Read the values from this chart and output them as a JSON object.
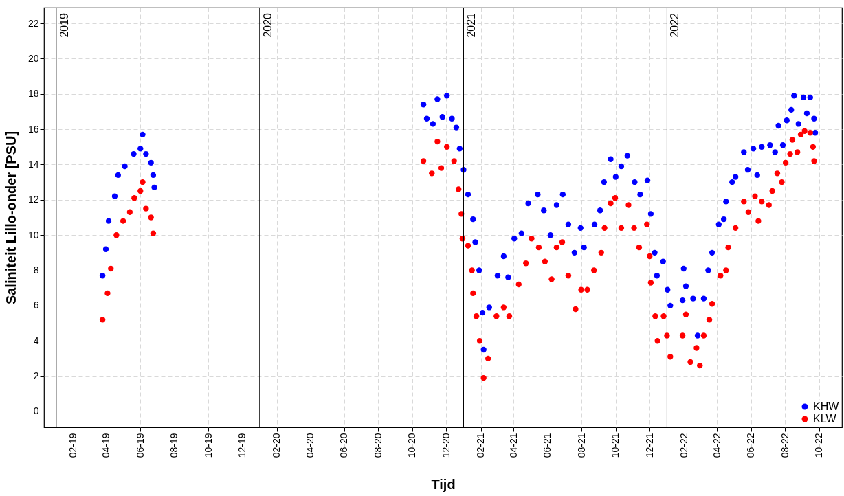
{
  "chart_data": {
    "type": "scatter",
    "xlabel": "Tijd",
    "ylabel": "Saliniteit Lillo-onder [PSU]",
    "xlim": [
      "2018-12-10",
      "2022-11-11"
    ],
    "ylim": [
      -0.9,
      22.9
    ],
    "yticks": [
      0,
      2,
      4,
      6,
      8,
      10,
      12,
      14,
      16,
      18,
      20,
      22
    ],
    "xticks": [
      {
        "value": "2019-02-01",
        "label": "02-19"
      },
      {
        "value": "2019-04-01",
        "label": "04-19"
      },
      {
        "value": "2019-06-01",
        "label": "06-19"
      },
      {
        "value": "2019-08-01",
        "label": "08-19"
      },
      {
        "value": "2019-10-01",
        "label": "10-19"
      },
      {
        "value": "2019-12-01",
        "label": "12-19"
      },
      {
        "value": "2020-02-01",
        "label": "02-20"
      },
      {
        "value": "2020-04-01",
        "label": "04-20"
      },
      {
        "value": "2020-06-01",
        "label": "06-20"
      },
      {
        "value": "2020-08-01",
        "label": "08-20"
      },
      {
        "value": "2020-10-01",
        "label": "10-20"
      },
      {
        "value": "2020-12-01",
        "label": "12-20"
      },
      {
        "value": "2021-02-01",
        "label": "02-21"
      },
      {
        "value": "2021-04-01",
        "label": "04-21"
      },
      {
        "value": "2021-06-01",
        "label": "06-21"
      },
      {
        "value": "2021-08-01",
        "label": "08-21"
      },
      {
        "value": "2021-10-01",
        "label": "10-21"
      },
      {
        "value": "2021-12-01",
        "label": "12-21"
      },
      {
        "value": "2022-02-01",
        "label": "02-22"
      },
      {
        "value": "2022-04-01",
        "label": "04-22"
      },
      {
        "value": "2022-06-01",
        "label": "06-22"
      },
      {
        "value": "2022-08-01",
        "label": "08-22"
      },
      {
        "value": "2022-10-01",
        "label": "10-22"
      }
    ],
    "grid": true,
    "legend": "bottom right",
    "marker": "circle",
    "ref_lines": [
      {
        "axis": "x",
        "value": "2019-01-01",
        "label": "2019",
        "color": "#000000"
      },
      {
        "axis": "x",
        "value": "2020-01-01",
        "label": "2020",
        "color": "#000000"
      },
      {
        "axis": "x",
        "value": "2021-01-01",
        "label": "2021",
        "color": "#000000"
      },
      {
        "axis": "x",
        "value": "2022-01-01",
        "label": "2022",
        "color": "#000000"
      }
    ],
    "series": [
      {
        "name": "KHW",
        "color": "#0000ff",
        "x": [
          "2019-03-25",
          "2019-03-31",
          "2019-04-05",
          "2019-04-16",
          "2019-04-22",
          "2019-05-04",
          "2019-05-20",
          "2019-06-01",
          "2019-06-05",
          "2019-06-11",
          "2019-06-20",
          "2019-06-24",
          "2019-06-26",
          "2020-10-21",
          "2020-10-27",
          "2020-11-07",
          "2020-11-15",
          "2020-11-24",
          "2020-12-02",
          "2020-12-11",
          "2020-12-19",
          "2020-12-25",
          "2021-01-01",
          "2021-01-09",
          "2021-01-18",
          "2021-01-22",
          "2021-01-29",
          "2021-02-04",
          "2021-02-06",
          "2021-02-16",
          "2021-03-03",
          "2021-03-14",
          "2021-03-22",
          "2021-04-02",
          "2021-04-15",
          "2021-04-27",
          "2021-05-14",
          "2021-05-25",
          "2021-06-06",
          "2021-06-17",
          "2021-06-28",
          "2021-07-08",
          "2021-07-19",
          "2021-07-30",
          "2021-08-05",
          "2021-08-24",
          "2021-09-03",
          "2021-09-10",
          "2021-09-22",
          "2021-10-01",
          "2021-10-11",
          "2021-10-22",
          "2021-11-04",
          "2021-11-14",
          "2021-11-27",
          "2021-12-03",
          "2021-12-10",
          "2021-12-14",
          "2021-12-25",
          "2022-01-02",
          "2022-01-07",
          "2022-01-29",
          "2022-01-31",
          "2022-02-04",
          "2022-02-17",
          "2022-02-25",
          "2022-03-08",
          "2022-03-16",
          "2022-03-23",
          "2022-04-04",
          "2022-04-13",
          "2022-04-17",
          "2022-04-28",
          "2022-05-04",
          "2022-05-19",
          "2022-05-26",
          "2022-06-05",
          "2022-06-12",
          "2022-06-20",
          "2022-07-05",
          "2022-07-14",
          "2022-07-20",
          "2022-07-28",
          "2022-08-04",
          "2022-08-12",
          "2022-08-17",
          "2022-08-25",
          "2022-09-03",
          "2022-09-09",
          "2022-09-15",
          "2022-09-22",
          "2022-09-24"
        ],
        "values": [
          7.7,
          9.2,
          10.8,
          12.2,
          13.4,
          13.9,
          14.6,
          14.9,
          15.7,
          14.6,
          14.1,
          13.4,
          12.7,
          17.4,
          16.6,
          16.3,
          17.7,
          16.7,
          17.9,
          16.6,
          16.1,
          14.9,
          13.7,
          12.3,
          10.9,
          9.6,
          8.0,
          5.6,
          3.5,
          5.9,
          7.7,
          8.8,
          7.6,
          9.8,
          10.1,
          11.8,
          12.3,
          11.4,
          10.0,
          11.7,
          12.3,
          10.6,
          9.0,
          10.4,
          9.3,
          10.6,
          11.4,
          13.0,
          14.3,
          13.3,
          13.9,
          14.5,
          13.0,
          12.3,
          13.1,
          11.2,
          9.0,
          7.7,
          8.5,
          6.9,
          6.0,
          6.3,
          8.1,
          7.1,
          6.4,
          4.3,
          6.4,
          8.0,
          9.0,
          10.6,
          10.9,
          11.9,
          13.0,
          13.3,
          14.7,
          13.7,
          14.9,
          13.4,
          15.0,
          15.1,
          14.7,
          16.2,
          15.1,
          16.5,
          17.1,
          17.9,
          16.3,
          17.8,
          16.9,
          17.8,
          16.6,
          15.8
        ]
      },
      {
        "name": "KLW",
        "color": "#ff0000",
        "x": [
          "2019-03-25",
          "2019-04-03",
          "2019-04-09",
          "2019-04-19",
          "2019-05-01",
          "2019-05-13",
          "2019-05-21",
          "2019-06-01",
          "2019-06-05",
          "2019-06-11",
          "2019-06-20",
          "2019-06-24",
          "2020-10-21",
          "2020-11-05",
          "2020-11-15",
          "2020-11-22",
          "2020-12-02",
          "2020-12-15",
          "2020-12-23",
          "2020-12-28",
          "2020-12-30",
          "2021-01-09",
          "2021-01-16",
          "2021-01-18",
          "2021-01-24",
          "2021-01-30",
          "2021-02-06",
          "2021-02-14",
          "2021-03-01",
          "2021-03-14",
          "2021-03-24",
          "2021-04-10",
          "2021-04-23",
          "2021-05-03",
          "2021-05-16",
          "2021-05-27",
          "2021-06-08",
          "2021-06-17",
          "2021-06-27",
          "2021-07-08",
          "2021-07-21",
          "2021-07-31",
          "2021-08-11",
          "2021-08-23",
          "2021-09-05",
          "2021-09-11",
          "2021-09-22",
          "2021-09-30",
          "2021-10-11",
          "2021-10-24",
          "2021-11-03",
          "2021-11-12",
          "2021-11-26",
          "2021-12-01",
          "2021-12-03",
          "2021-12-11",
          "2021-12-15",
          "2021-12-26",
          "2022-01-01",
          "2022-01-07",
          "2022-01-29",
          "2022-02-04",
          "2022-02-12",
          "2022-02-23",
          "2022-03-01",
          "2022-03-08",
          "2022-03-18",
          "2022-03-23",
          "2022-04-07",
          "2022-04-17",
          "2022-04-21",
          "2022-05-04",
          "2022-05-19",
          "2022-05-27",
          "2022-06-08",
          "2022-06-14",
          "2022-06-20",
          "2022-07-03",
          "2022-07-09",
          "2022-07-18",
          "2022-07-26",
          "2022-08-02",
          "2022-08-10",
          "2022-08-14",
          "2022-08-23",
          "2022-08-29",
          "2022-09-05",
          "2022-09-15",
          "2022-09-20",
          "2022-09-22"
        ],
        "values": [
          5.2,
          6.7,
          8.1,
          10.0,
          10.8,
          11.3,
          12.1,
          12.5,
          13.0,
          11.5,
          11.0,
          10.1,
          14.2,
          13.5,
          15.3,
          13.8,
          15.0,
          14.2,
          12.6,
          11.2,
          9.8,
          9.4,
          8.0,
          6.7,
          5.4,
          4.0,
          1.9,
          3.0,
          5.4,
          5.9,
          5.4,
          7.2,
          8.4,
          9.8,
          9.3,
          8.5,
          7.5,
          9.3,
          9.6,
          7.7,
          5.8,
          6.9,
          6.9,
          8.0,
          9.0,
          10.4,
          11.8,
          12.1,
          10.4,
          11.7,
          10.4,
          9.3,
          10.6,
          8.8,
          7.3,
          5.4,
          4.0,
          5.4,
          4.3,
          3.1,
          4.3,
          5.5,
          2.8,
          3.6,
          2.6,
          4.3,
          5.2,
          6.1,
          7.7,
          8.0,
          9.3,
          10.4,
          11.9,
          11.3,
          12.2,
          10.8,
          11.9,
          11.7,
          12.5,
          13.5,
          13.0,
          14.1,
          14.6,
          15.4,
          14.7,
          15.7,
          15.9,
          15.8,
          15.0,
          14.2
        ]
      }
    ]
  }
}
